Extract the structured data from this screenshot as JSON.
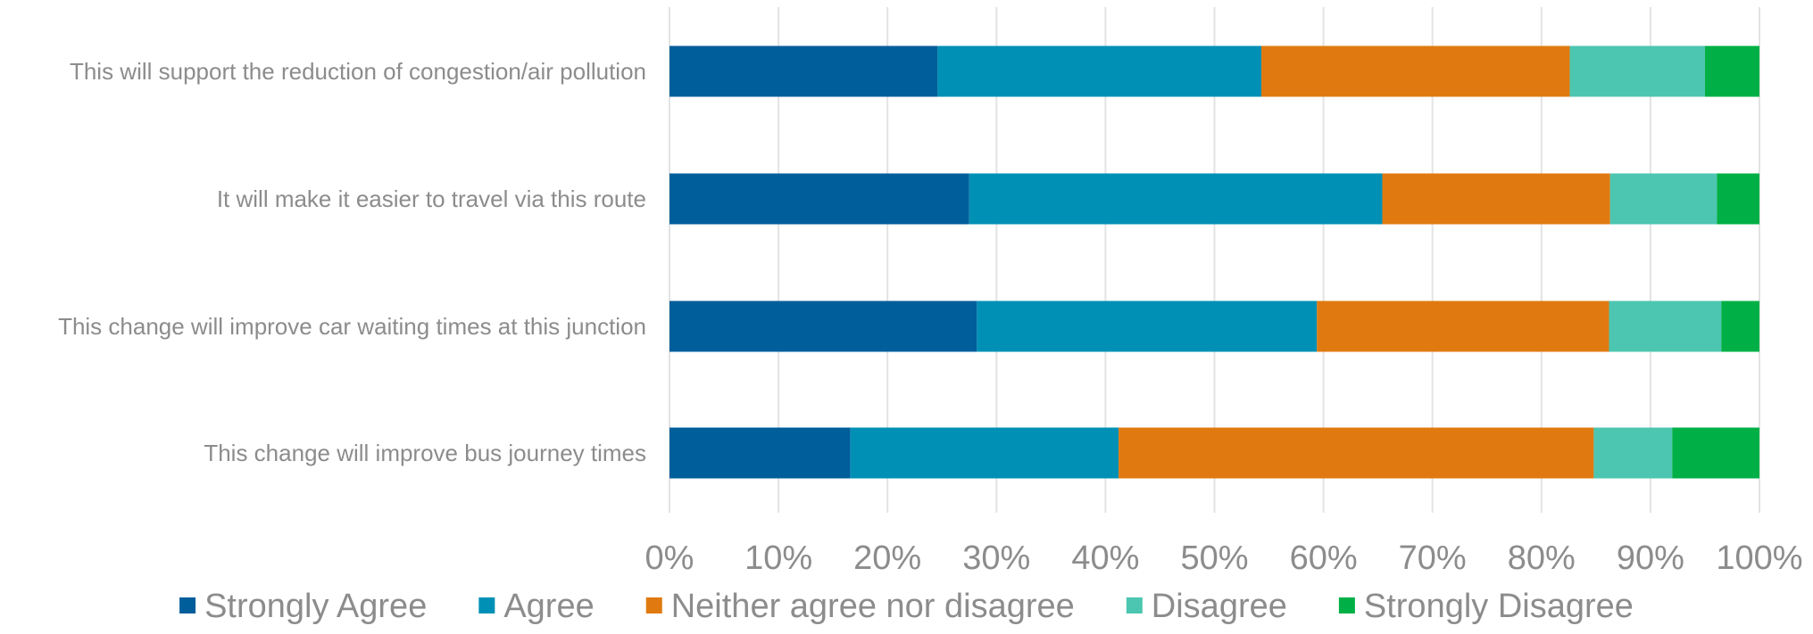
{
  "chart_data": {
    "type": "bar",
    "orientation": "horizontal",
    "stacked": "percent",
    "categories": [
      "This will support the reduction of congestion/air pollution",
      "It will make it easier to travel via this route",
      "This change will improve car waiting times at this junction",
      "This change will improve bus journey times"
    ],
    "series": [
      {
        "name": "Strongly Agree",
        "color": "#005e9b",
        "values": [
          24.6,
          27.5,
          28.2,
          16.6
        ]
      },
      {
        "name": "Agree",
        "color": "#0090b6",
        "values": [
          29.7,
          37.9,
          31.2,
          24.6
        ]
      },
      {
        "name": "Neither agree nor disagree",
        "color": "#e07a10",
        "values": [
          28.3,
          20.9,
          26.8,
          43.6
        ]
      },
      {
        "name": "Disagree",
        "color": "#4cc6b0",
        "values": [
          12.4,
          9.8,
          10.3,
          7.2
        ]
      },
      {
        "name": "Strongly Disagree",
        "color": "#00b046",
        "values": [
          5.0,
          3.9,
          3.5,
          8.0
        ]
      }
    ],
    "xlim": [
      0,
      100
    ],
    "x_ticks": [
      "0%",
      "10%",
      "20%",
      "30%",
      "40%",
      "50%",
      "60%",
      "70%",
      "80%",
      "90%",
      "100%"
    ],
    "grid": true,
    "legend_position": "bottom"
  }
}
